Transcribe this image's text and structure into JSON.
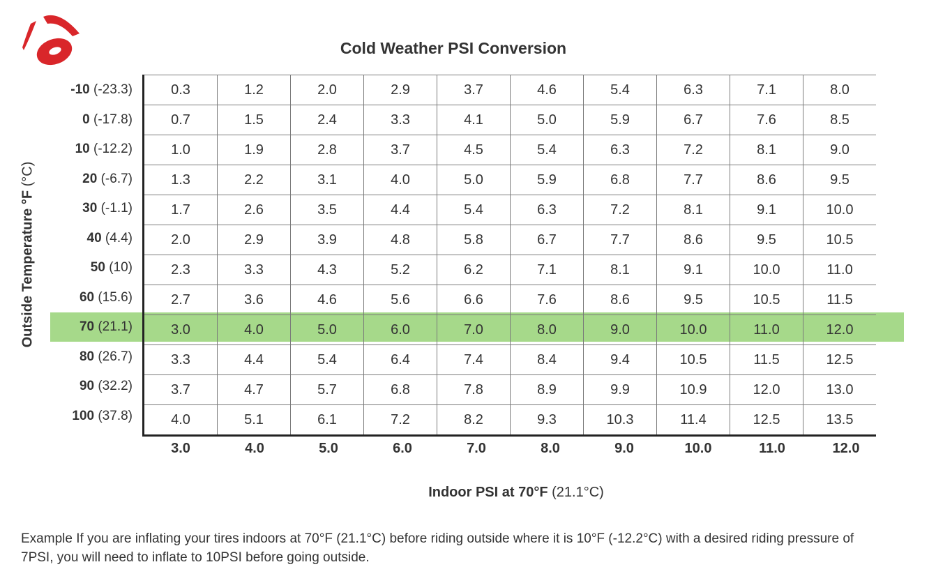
{
  "brand": {
    "logo_icon": "brand-logo-icon",
    "logo_color": "#d9262a"
  },
  "title": "Cold Weather PSI Conversion",
  "y_axis": {
    "label_bold": "Outside Temperature °F",
    "label_unit": "(°C)"
  },
  "x_axis": {
    "label_bold": "Indoor PSI at 70°F",
    "label_unit": "(21.1°C)"
  },
  "highlight_color": "#a6d98a",
  "chart_data": {
    "type": "table",
    "title": "Cold Weather PSI Conversion",
    "xlabel": "Indoor PSI at 70°F (21.1°C)",
    "ylabel": "Outside Temperature °F (°C)",
    "highlighted_row": 8,
    "columns": [
      "3.0",
      "4.0",
      "5.0",
      "6.0",
      "7.0",
      "8.0",
      "9.0",
      "10.0",
      "11.0",
      "12.0"
    ],
    "rows": [
      {
        "f": "-10",
        "c": "(-23.3)",
        "values": [
          "0.3",
          "1.2",
          "2.0",
          "2.9",
          "3.7",
          "4.6",
          "5.4",
          "6.3",
          "7.1",
          "8.0"
        ]
      },
      {
        "f": "0",
        "c": "(-17.8)",
        "values": [
          "0.7",
          "1.5",
          "2.4",
          "3.3",
          "4.1",
          "5.0",
          "5.9",
          "6.7",
          "7.6",
          "8.5"
        ]
      },
      {
        "f": "10",
        "c": "(-12.2)",
        "values": [
          "1.0",
          "1.9",
          "2.8",
          "3.7",
          "4.5",
          "5.4",
          "6.3",
          "7.2",
          "8.1",
          "9.0"
        ]
      },
      {
        "f": "20",
        "c": "(-6.7)",
        "values": [
          "1.3",
          "2.2",
          "3.1",
          "4.0",
          "5.0",
          "5.9",
          "6.8",
          "7.7",
          "8.6",
          "9.5"
        ]
      },
      {
        "f": "30",
        "c": "(-1.1)",
        "values": [
          "1.7",
          "2.6",
          "3.5",
          "4.4",
          "5.4",
          "6.3",
          "7.2",
          "8.1",
          "9.1",
          "10.0"
        ]
      },
      {
        "f": "40",
        "c": "(4.4)",
        "values": [
          "2.0",
          "2.9",
          "3.9",
          "4.8",
          "5.8",
          "6.7",
          "7.7",
          "8.6",
          "9.5",
          "10.5"
        ]
      },
      {
        "f": "50",
        "c": "(10)",
        "values": [
          "2.3",
          "3.3",
          "4.3",
          "5.2",
          "6.2",
          "7.1",
          "8.1",
          "9.1",
          "10.0",
          "11.0"
        ]
      },
      {
        "f": "60",
        "c": "(15.6)",
        "values": [
          "2.7",
          "3.6",
          "4.6",
          "5.6",
          "6.6",
          "7.6",
          "8.6",
          "9.5",
          "10.5",
          "11.5"
        ]
      },
      {
        "f": "70",
        "c": "(21.1)",
        "values": [
          "3.0",
          "4.0",
          "5.0",
          "6.0",
          "7.0",
          "8.0",
          "9.0",
          "10.0",
          "11.0",
          "12.0"
        ]
      },
      {
        "f": "80",
        "c": "(26.7)",
        "values": [
          "3.3",
          "4.4",
          "5.4",
          "6.4",
          "7.4",
          "8.4",
          "9.4",
          "10.5",
          "11.5",
          "12.5"
        ]
      },
      {
        "f": "90",
        "c": "(32.2)",
        "values": [
          "3.7",
          "4.7",
          "5.7",
          "6.8",
          "7.8",
          "8.9",
          "9.9",
          "10.9",
          "12.0",
          "13.0"
        ]
      },
      {
        "f": "100",
        "c": "(37.8)",
        "values": [
          "4.0",
          "5.1",
          "6.1",
          "7.2",
          "8.2",
          "9.3",
          "10.3",
          "11.4",
          "12.5",
          "13.5"
        ]
      }
    ]
  },
  "example_text": "Example  If you are inflating your tires indoors at 70°F (21.1°C) before riding outside where it is 10°F (-12.2°C) with a desired riding pressure of 7PSI, you will need to inflate to 10PSI before going outside."
}
